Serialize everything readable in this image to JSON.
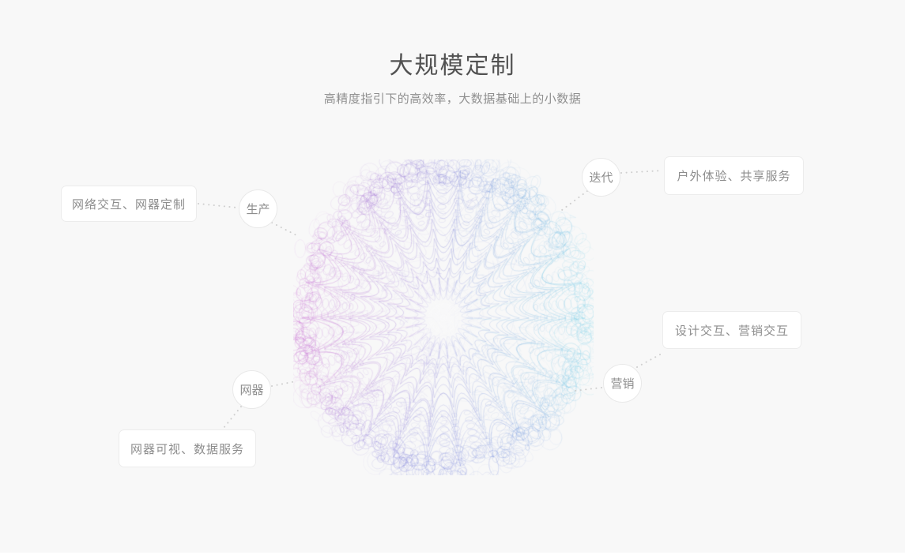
{
  "page": {
    "title": "大规模定制",
    "subtitle": "高精度指引下的高效率，大数据基础上的小数据",
    "background": "#f8f8f8"
  },
  "diagram": {
    "branches": [
      {
        "node": "生产",
        "card": "网络交互、网器定制"
      },
      {
        "node": "迭代",
        "card": "户外体验、共享服务"
      },
      {
        "node": "营销",
        "card": "设计交互、营销交互"
      },
      {
        "node": "网器",
        "card": "网器可视、数据服务"
      }
    ],
    "connector_color": "#cfcfcf"
  },
  "sphere": {
    "name": "generative-scribble-sphere",
    "colors": {
      "magenta": "#c253cb",
      "violet": "#6b67d1",
      "cyan": "#4fc6e4",
      "indigo": "#5a6ed8",
      "background": "#f8f8f9"
    }
  }
}
